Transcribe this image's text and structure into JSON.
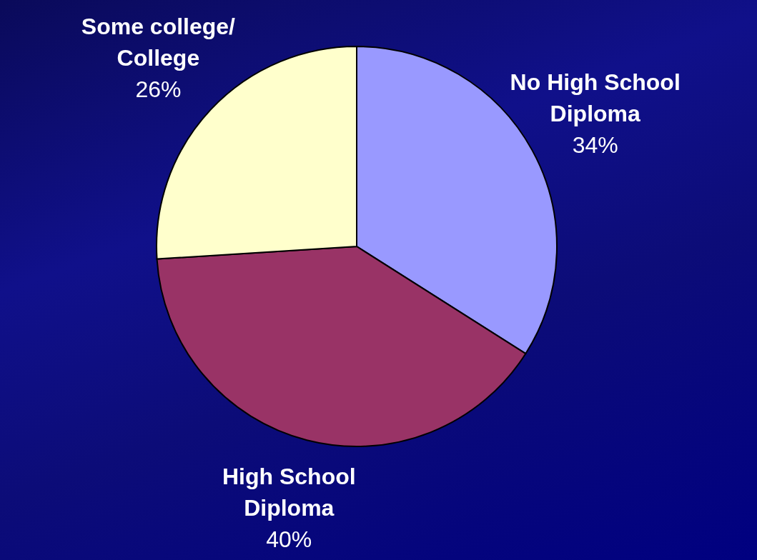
{
  "chart_data": {
    "type": "pie",
    "categories": [
      "No High School Diploma",
      "High School Diploma",
      "Some college/ College"
    ],
    "values": [
      34,
      40,
      26
    ],
    "colors": [
      "#9999ff",
      "#993366",
      "#ffffcc"
    ],
    "value_labels": [
      "34%",
      "40%",
      "26%"
    ]
  }
}
